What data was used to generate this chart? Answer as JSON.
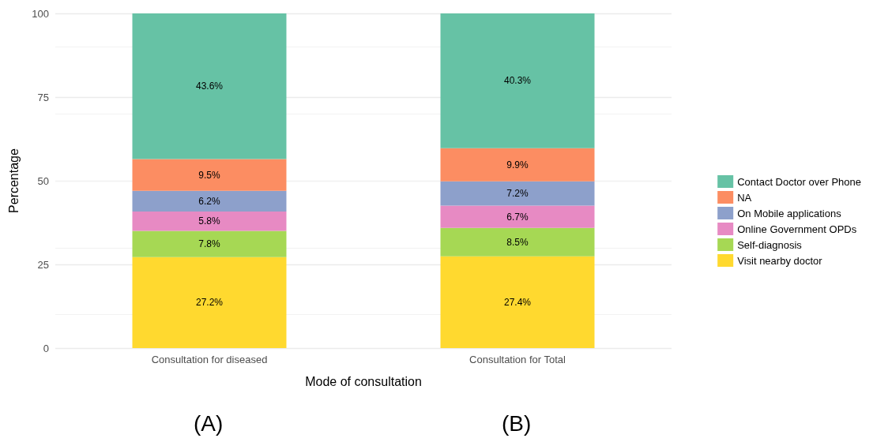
{
  "chart_data": {
    "type": "bar",
    "stacked": true,
    "xlabel": "Mode of consultation",
    "ylabel": "Percentage",
    "categories": [
      "Consultation for diseased",
      "Consultation for Total"
    ],
    "series": [
      {
        "name": "Visit nearby doctor",
        "color": "#ffd92f",
        "values": [
          27.2,
          27.4
        ],
        "value_labels": [
          "27.2%",
          "27.4%"
        ]
      },
      {
        "name": "Self-diagnosis",
        "color": "#a6d854",
        "values": [
          7.8,
          8.5
        ],
        "value_labels": [
          "7.8%",
          "8.5%"
        ]
      },
      {
        "name": "Online Government OPDs",
        "color": "#e78ac3",
        "values": [
          5.8,
          6.7
        ],
        "value_labels": [
          "5.8%",
          "6.7%"
        ]
      },
      {
        "name": "On Mobile applications",
        "color": "#8da0cb",
        "values": [
          6.2,
          7.2
        ],
        "value_labels": [
          "6.2%",
          "7.2%"
        ]
      },
      {
        "name": "NA",
        "color": "#fc8d62",
        "values": [
          9.5,
          9.9
        ],
        "value_labels": [
          "9.5%",
          "9.9%"
        ]
      },
      {
        "name": "Contact Doctor over Phone",
        "color": "#66c2a5",
        "values": [
          43.6,
          40.3
        ],
        "value_labels": [
          "43.6%",
          "40.3%"
        ]
      }
    ],
    "ylim": [
      0,
      100
    ],
    "yticks": [
      0,
      25,
      50,
      75,
      100
    ],
    "grid": "y",
    "legend": "right",
    "annotations": [
      "(A)",
      "(B)"
    ]
  }
}
